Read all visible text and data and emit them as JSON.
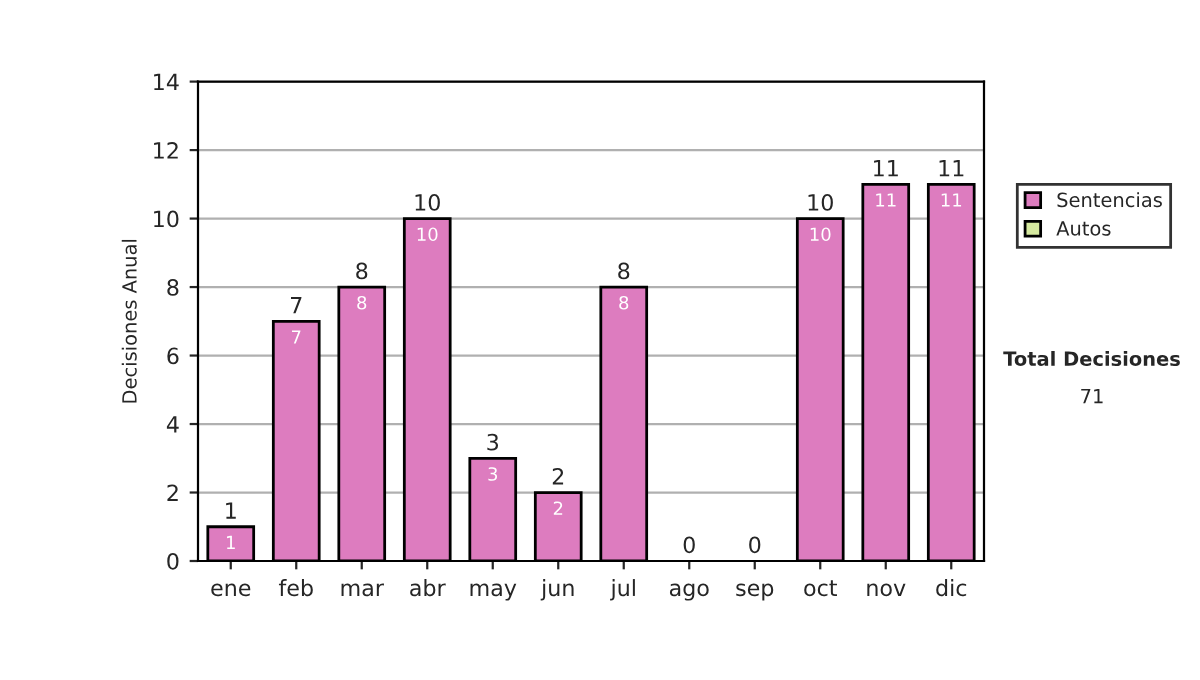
{
  "chart_data": {
    "type": "bar",
    "stacked": true,
    "ylabel": "Decisiones Anual",
    "categories": [
      "ene",
      "feb",
      "mar",
      "abr",
      "may",
      "jun",
      "jul",
      "ago",
      "sep",
      "oct",
      "nov",
      "dic"
    ],
    "series": [
      {
        "name": "Sentencias",
        "color": "#dd7cbf",
        "values": [
          1,
          7,
          8,
          10,
          3,
          2,
          8,
          0,
          0,
          10,
          11,
          11
        ],
        "value_labels": [
          "1",
          "7",
          "8",
          "10",
          "3",
          "2",
          "8",
          null,
          null,
          "10",
          "11",
          "11"
        ]
      },
      {
        "name": "Autos",
        "color": "#d6eaa0",
        "values": [
          0,
          0,
          0,
          0,
          0,
          0,
          0,
          0,
          0,
          0,
          0,
          0
        ]
      }
    ],
    "totals": [
      "1",
      "7",
      "8",
      "10",
      "3",
      "2",
      "8",
      "0",
      "0",
      "10",
      "11",
      "11"
    ],
    "ylim": [
      0,
      14
    ],
    "yticks": [
      0,
      2,
      4,
      6,
      8,
      10,
      12,
      14
    ],
    "grid": "y",
    "legend": "right",
    "annotations": [
      "Total Decisiones",
      "71"
    ]
  }
}
